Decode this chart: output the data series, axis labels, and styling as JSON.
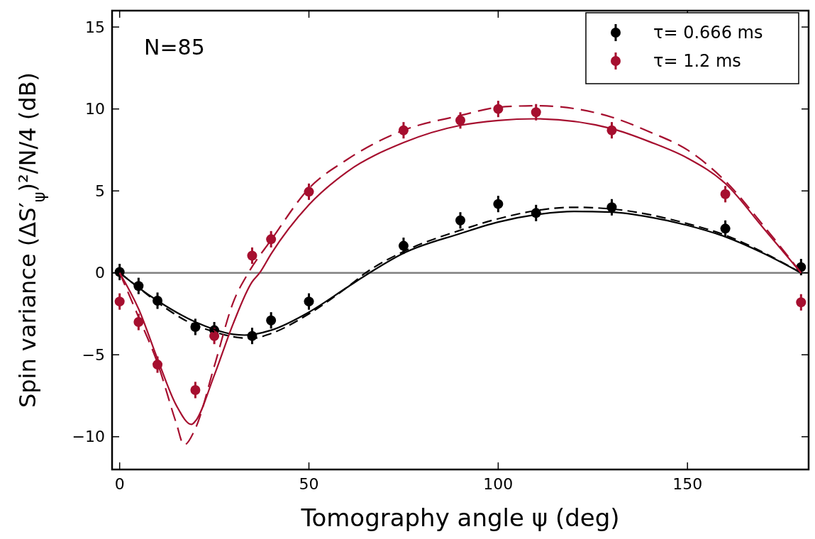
{
  "chart_data": {
    "type": "scatter",
    "xlabel": "Tomography angle ψ (deg)",
    "ylabel": "Spin variance (ΔS′$_{ψ}$)²/N/4 (dB)",
    "annotations": [
      "N=85"
    ],
    "xlim": [
      -2,
      182
    ],
    "ylim": [
      -12,
      16
    ],
    "xticks": [
      0,
      50,
      100,
      150
    ],
    "yticks": [
      {
        "value": -10,
        "label": "−10"
      },
      {
        "value": -5,
        "label": "−5"
      },
      0,
      5,
      10,
      15
    ],
    "grid": false,
    "legend": "top right",
    "ref_lines": [
      {
        "axis": "y",
        "value": 0,
        "color": "#808080",
        "line_style": "solid"
      }
    ],
    "series": [
      {
        "name": "τ= 0.666 ms",
        "color": "#000000",
        "marker": "circle",
        "x": [
          0,
          5,
          10,
          20,
          25,
          35,
          40,
          50,
          75,
          90,
          100,
          110,
          130,
          160,
          180
        ],
        "values": [
          0.05,
          -0.8,
          -1.7,
          -3.3,
          -3.5,
          -3.85,
          -2.9,
          -1.75,
          1.65,
          3.2,
          4.2,
          3.65,
          4.0,
          2.7,
          0.35
        ],
        "errors": [
          0.5,
          0.5,
          0.5,
          0.5,
          0.5,
          0.5,
          0.5,
          0.5,
          0.5,
          0.5,
          0.5,
          0.5,
          0.5,
          0.5,
          0.5
        ]
      },
      {
        "name": "τ= 1.2 ms",
        "color": "#a60f2f",
        "marker": "circle",
        "x": [
          0,
          5,
          10,
          20,
          25,
          35,
          40,
          50,
          75,
          90,
          100,
          110,
          130,
          160,
          180
        ],
        "values": [
          -1.75,
          -3.0,
          -5.6,
          -7.15,
          -3.85,
          1.05,
          2.05,
          4.95,
          8.7,
          9.3,
          10.0,
          9.8,
          8.7,
          4.8,
          -1.8
        ],
        "errors": [
          0.5,
          0.5,
          0.5,
          0.5,
          0.5,
          0.5,
          0.5,
          0.5,
          0.5,
          0.5,
          0.5,
          0.5,
          0.5,
          0.5,
          0.5
        ]
      },
      {
        "type": "line",
        "color": "#000000",
        "marker": "none",
        "line_style": "solid",
        "x": [
          0,
          5,
          10,
          20,
          25,
          30,
          33,
          40,
          50,
          60,
          66,
          75,
          90,
          100,
          110,
          120,
          130,
          140,
          150,
          160,
          170,
          180
        ],
        "values": [
          0,
          -0.9,
          -1.7,
          -3.0,
          -3.45,
          -3.75,
          -3.8,
          -3.5,
          -2.4,
          -0.9,
          0,
          1.2,
          2.4,
          3.1,
          3.55,
          3.75,
          3.7,
          3.4,
          2.9,
          2.2,
          1.2,
          0
        ]
      },
      {
        "type": "line",
        "color": "#000000",
        "marker": "none",
        "line_style": "dashed",
        "x": [
          0,
          5,
          10,
          20,
          25,
          30,
          35,
          40,
          50,
          60,
          65,
          75,
          90,
          100,
          110,
          120,
          130,
          140,
          150,
          160,
          170,
          180
        ],
        "values": [
          0,
          -0.9,
          -1.8,
          -3.2,
          -3.6,
          -3.9,
          -4.0,
          -3.7,
          -2.5,
          -0.9,
          0,
          1.3,
          2.6,
          3.3,
          3.8,
          4.0,
          3.9,
          3.55,
          3.0,
          2.3,
          1.25,
          0
        ]
      },
      {
        "type": "line",
        "color": "#a60f2f",
        "marker": "none",
        "line_style": "solid",
        "x": [
          0,
          5,
          10,
          15,
          19,
          20,
          25,
          30,
          35,
          37,
          40,
          50,
          60,
          75,
          90,
          100,
          110,
          130,
          140,
          150,
          160,
          170,
          180
        ],
        "values": [
          0,
          -2.2,
          -5.25,
          -8.1,
          -9.25,
          -9.05,
          -6.25,
          -3.1,
          -0.55,
          0,
          1.15,
          4.15,
          6.15,
          7.95,
          9.0,
          9.3,
          9.4,
          8.8,
          8.0,
          7.0,
          5.45,
          2.75,
          0
        ]
      },
      {
        "type": "line",
        "color": "#a60f2f",
        "marker": "none",
        "line_style": "dashed",
        "x": [
          0,
          5,
          10,
          15,
          17,
          20,
          25,
          30,
          34,
          40,
          50,
          60,
          75,
          90,
          100,
          110,
          130,
          140,
          150,
          160,
          170,
          180
        ],
        "values": [
          0,
          -2.7,
          -5.5,
          -9.2,
          -10.5,
          -9.5,
          -5.7,
          -1.8,
          0,
          2.0,
          5.15,
          6.9,
          8.7,
          9.6,
          10.1,
          10.2,
          9.5,
          8.6,
          7.5,
          5.6,
          2.9,
          0
        ]
      }
    ]
  }
}
